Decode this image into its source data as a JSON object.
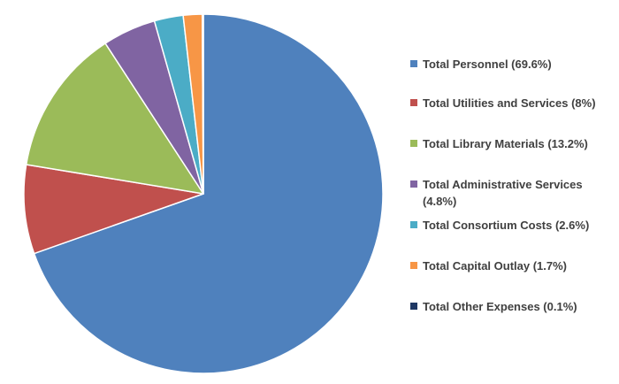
{
  "chart_data": {
    "type": "pie",
    "title": "",
    "legend_position": "right",
    "slices": [
      {
        "label": "Total Personnel (69.6%)",
        "value": 69.6,
        "color": "#4f81bd"
      },
      {
        "label": "Total Utilities and Services (8%)",
        "value": 8,
        "color": "#c0504d"
      },
      {
        "label": "Total Library Materials (13.2%)",
        "value": 13.2,
        "color": "#9bbb59"
      },
      {
        "label": "Total Administrative Services (4.8%)",
        "value": 4.8,
        "color": "#8064a2"
      },
      {
        "label": "Total Consortium Costs (2.6%)",
        "value": 2.6,
        "color": "#4bacc6"
      },
      {
        "label": "Total Capital Outlay (1.7%)",
        "value": 1.7,
        "color": "#f79646"
      },
      {
        "label": "Total Other Expenses (0.1%)",
        "value": 0.1,
        "color": "#1f3864"
      }
    ]
  }
}
